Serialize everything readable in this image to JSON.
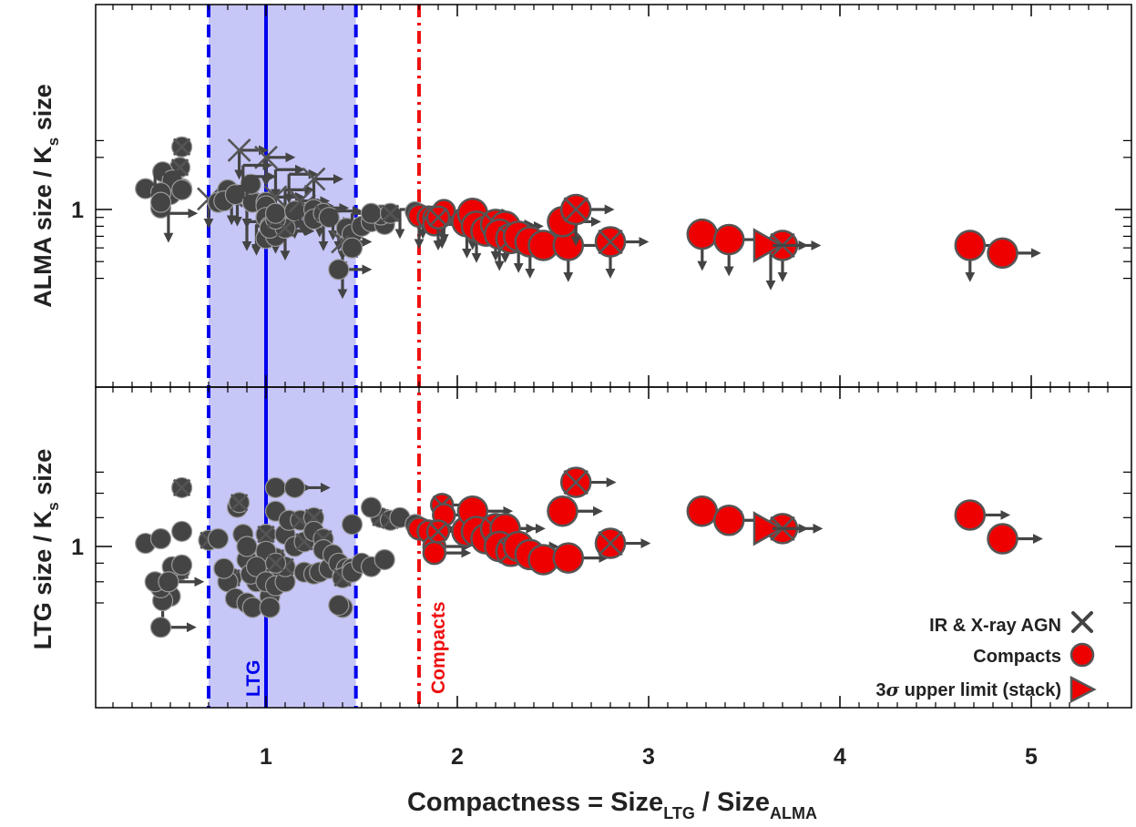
{
  "chart_data": {
    "type": "scatter",
    "xlabel_parts": [
      "Compactness = Size",
      "LTG",
      " / Size",
      "ALMA"
    ],
    "xlim": [
      0.1,
      5.45
    ],
    "x_ticks": [
      {
        "value": 1,
        "label": "1"
      },
      {
        "value": 2,
        "label": "2"
      },
      {
        "value": 3,
        "label": "3"
      },
      {
        "value": 4,
        "label": "4"
      },
      {
        "value": 5,
        "label": "5"
      }
    ],
    "panels": [
      {
        "ylabel_parts": [
          "ALMA size / K",
          "s",
          " size"
        ],
        "y_scale": "log",
        "ylim": [
          0.4,
          2.5
        ],
        "y_ticks": [
          {
            "value": 1,
            "label": "1"
          }
        ]
      },
      {
        "ylabel_parts": [
          "LTG size / K",
          "s",
          " size"
        ],
        "y_scale": "log",
        "ylim": [
          0.65,
          1.62
        ],
        "y_ticks": [
          {
            "value": 1,
            "label": "1"
          }
        ]
      }
    ],
    "ltg_band": {
      "center": 1.0,
      "low": 0.7,
      "high": 1.47,
      "label": "LTG",
      "color": "#0000ee",
      "fill": "#c6c6f7"
    },
    "compact_threshold": {
      "x": 1.8,
      "label": "Compacts",
      "color": "#ee1111"
    },
    "legend": [
      {
        "label": "IR & X-ray AGN",
        "marker": "x"
      },
      {
        "label": "Compacts",
        "marker": "circle-red"
      },
      {
        "label_parts": [
          "3",
          "σ",
          " upper limit (stack)"
        ],
        "marker": "triangle-red"
      }
    ],
    "legend_position": "bottom-right",
    "colors": {
      "ltg_points": "#444444",
      "compacts": "#ee0000",
      "edge": "#555555"
    },
    "series": [
      {
        "type": "ltg",
        "note_hidden": true,
        "points": [
          [
            0.37,
            1.32,
            1.02,
            "",
            "",
            false
          ],
          [
            0.45,
            1.02,
            1.05,
            "",
            "",
            false
          ],
          [
            0.5,
            1.22,
            0.73,
            "",
            "",
            false
          ],
          [
            0.56,
            1.32,
            1.1,
            "",
            "",
            false
          ],
          [
            0.55,
            1.75,
            0.86,
            "",
            "",
            true
          ],
          [
            0.56,
            2.3,
            1.45,
            "",
            "",
            true
          ],
          [
            0.46,
            1.65,
            0.71,
            "",
            "b",
            false
          ],
          [
            0.51,
            1.48,
            0.88,
            "",
            "",
            false
          ],
          [
            0.56,
            1.3,
            0.89,
            "",
            "",
            false
          ],
          [
            0.45,
            1.25,
            0.77,
            "",
            "",
            false
          ],
          [
            0.42,
            1.6,
            0.8,
            "rd",
            "",
            false
          ],
          [
            0.49,
            0.95,
            0.8,
            "rd",
            "r",
            false
          ],
          [
            0.45,
            1.1,
            0.6,
            "",
            "r",
            false
          ],
          [
            0.7,
            1.15,
            1.04,
            "rd",
            "",
            true
          ],
          [
            0.75,
            1.1,
            1.05,
            "",
            "",
            false
          ],
          [
            0.82,
            1.2,
            0.82,
            "rd",
            "",
            true
          ],
          [
            0.8,
            1.3,
            0.8,
            "",
            "",
            false
          ],
          [
            0.85,
            1.18,
            1.28,
            "rd",
            "",
            false
          ],
          [
            0.78,
            1.12,
            0.87,
            "",
            "",
            false
          ],
          [
            0.84,
            1.22,
            0.72,
            "",
            "",
            false
          ],
          [
            0.9,
            1.15,
            0.7,
            "rd",
            "",
            false
          ],
          [
            0.93,
            1.1,
            0.68,
            "",
            "",
            false
          ],
          [
            0.9,
            0.85,
            0.92,
            "rd",
            "",
            false
          ],
          [
            0.95,
            0.82,
            0.8,
            "rd",
            "",
            false
          ],
          [
            0.86,
            2.2,
            1.32,
            "rd",
            "",
            true
          ],
          [
            0.92,
            1.4,
            0.84,
            "",
            "",
            false
          ],
          [
            1.05,
            1.7,
            1.25,
            "rd",
            "",
            false
          ],
          [
            1.0,
            2.0,
            1.08,
            "rd",
            "",
            true
          ],
          [
            0.88,
            1.8,
            1.08,
            "rd",
            "",
            false
          ],
          [
            0.9,
            1.55,
            1.0,
            "rd",
            "",
            false
          ],
          [
            1.1,
            1.3,
            1.08,
            "rd",
            "",
            false
          ],
          [
            1.0,
            1.1,
            0.85,
            "",
            "",
            false
          ],
          [
            1.05,
            1.18,
            0.93,
            "rd",
            "",
            true
          ],
          [
            1.15,
            1.0,
            1.0,
            "rd",
            "",
            false
          ],
          [
            1.2,
            1.05,
            1.03,
            "rd",
            "",
            true
          ],
          [
            1.0,
            1.05,
            0.9,
            "",
            "",
            false
          ],
          [
            1.0,
            0.9,
            0.97,
            "",
            "",
            false
          ],
          [
            0.95,
            0.8,
            0.88,
            "rd",
            "",
            false
          ],
          [
            1.05,
            0.82,
            0.82,
            "rd",
            "",
            false
          ],
          [
            1.02,
            0.8,
            0.73,
            "",
            "",
            false
          ],
          [
            1.0,
            0.68,
            0.8,
            "",
            "",
            false
          ],
          [
            1.05,
            0.7,
            0.78,
            "",
            "",
            false
          ],
          [
            1.1,
            0.75,
            0.8,
            "rd",
            "",
            false
          ],
          [
            1.02,
            0.78,
            0.68,
            "",
            "",
            false
          ],
          [
            1.1,
            0.78,
            0.88,
            "",
            "",
            true
          ],
          [
            1.05,
            0.88,
            0.9,
            "",
            "",
            true
          ],
          [
            1.05,
            0.95,
            1.45,
            "",
            "r",
            false
          ],
          [
            1.15,
            0.98,
            1.45,
            "",
            "r",
            false
          ],
          [
            1.12,
            1.6,
            1.18,
            "rd",
            "",
            false
          ],
          [
            1.18,
            1.12,
            1.18,
            "rd",
            "",
            true
          ],
          [
            1.25,
            1.5,
            1.2,
            "rd",
            "",
            true
          ],
          [
            1.2,
            1.05,
            0.85,
            "rd",
            "",
            false
          ],
          [
            1.25,
            1.0,
            0.84,
            "",
            "",
            false
          ],
          [
            1.28,
            1.02,
            0.85,
            "rd",
            "",
            false
          ],
          [
            1.25,
            0.88,
            1.1,
            "",
            "",
            false
          ],
          [
            1.3,
            0.95,
            1.05,
            "",
            "",
            true
          ],
          [
            1.3,
            0.85,
            0.98,
            "rd",
            "",
            false
          ],
          [
            1.33,
            0.9,
            0.87,
            "",
            "",
            false
          ],
          [
            1.35,
            0.98,
            0.95,
            "rd",
            "",
            false
          ],
          [
            1.38,
            0.85,
            0.9,
            "rd",
            "",
            false
          ],
          [
            1.4,
            0.75,
            0.83,
            "rd",
            "",
            false
          ],
          [
            1.42,
            0.78,
            0.87,
            "",
            "",
            false
          ],
          [
            1.45,
            0.72,
            0.87,
            "",
            "",
            false
          ],
          [
            1.4,
            0.65,
            0.82,
            "rd",
            "",
            true
          ],
          [
            1.45,
            0.95,
            0.85,
            "rd",
            "",
            false
          ],
          [
            1.5,
            0.8,
            0.9,
            "",
            "",
            false
          ],
          [
            1.45,
            0.6,
            1.15,
            "",
            "",
            false
          ],
          [
            1.55,
            0.85,
            0.88,
            "",
            "",
            false
          ],
          [
            1.4,
            0.45,
            0.68,
            "rd",
            "",
            false
          ],
          [
            1.38,
            0.45,
            0.69,
            "",
            "",
            false
          ],
          [
            1.62,
            0.82,
            0.92,
            "",
            "",
            false
          ],
          [
            1.6,
            0.93,
            1.2,
            "",
            "",
            true
          ],
          [
            1.55,
            0.95,
            1.28,
            "",
            "",
            false
          ],
          [
            1.65,
            0.95,
            1.18,
            "",
            "",
            true
          ],
          [
            1.7,
            1.0,
            1.2,
            "rd",
            "",
            false
          ],
          [
            1.82,
            1.0,
            1.12,
            "rd",
            "",
            false
          ],
          [
            1.78,
            0.97,
            1.15,
            "",
            "",
            false
          ]
        ]
      },
      {
        "type": "compact",
        "points": [
          [
            1.8,
            0.92,
            1.12,
            "",
            "",
            false
          ],
          [
            1.85,
            0.9,
            1.1,
            "",
            "",
            false
          ],
          [
            1.88,
            0.9,
            1.0,
            "",
            "",
            false
          ],
          [
            1.88,
            0.82,
            0.96,
            "",
            "",
            false
          ],
          [
            1.92,
            0.92,
            1.3,
            "",
            "",
            true
          ],
          [
            1.93,
            0.98,
            1.22,
            "",
            "",
            false
          ],
          [
            1.9,
            0.9,
            1.1,
            "",
            "",
            true
          ],
          [
            2.05,
            0.85,
            1.1,
            "",
            "",
            false
          ],
          [
            2.08,
            0.95,
            1.25,
            "",
            "",
            false
          ],
          [
            2.1,
            0.8,
            1.1,
            "",
            "",
            false
          ],
          [
            2.15,
            0.75,
            1.05,
            "",
            "",
            false
          ],
          [
            2.2,
            0.82,
            1.12,
            "",
            "",
            true
          ],
          [
            2.25,
            0.8,
            1.12,
            "",
            "",
            false
          ],
          [
            2.22,
            0.72,
            1.0,
            "",
            "",
            false
          ],
          [
            2.28,
            0.68,
            0.97,
            "",
            "",
            true
          ],
          [
            2.32,
            0.7,
            1.0,
            "",
            "",
            false
          ],
          [
            2.38,
            0.65,
            0.95,
            "",
            "",
            false
          ],
          [
            2.45,
            0.62,
            0.92,
            "",
            "",
            false
          ],
          [
            2.58,
            0.62,
            0.93,
            "",
            "",
            false
          ],
          [
            2.55,
            0.85,
            1.25,
            "",
            "",
            false
          ],
          [
            2.62,
            1.0,
            1.5,
            "",
            "",
            true
          ],
          [
            2.8,
            0.65,
            1.02,
            "",
            "",
            true
          ],
          [
            3.28,
            0.72,
            1.25,
            "",
            "",
            false
          ],
          [
            3.42,
            0.67,
            1.18,
            "",
            "",
            false
          ],
          [
            3.7,
            0.62,
            1.12,
            "",
            "",
            true
          ],
          [
            4.68,
            0.62,
            1.22,
            "",
            "",
            false
          ],
          [
            4.85,
            0.56,
            1.05,
            "",
            "",
            false
          ]
        ]
      },
      {
        "type": "stack",
        "points": [
          [
            3.6,
            0.62,
            1.12
          ]
        ]
      }
    ]
  }
}
